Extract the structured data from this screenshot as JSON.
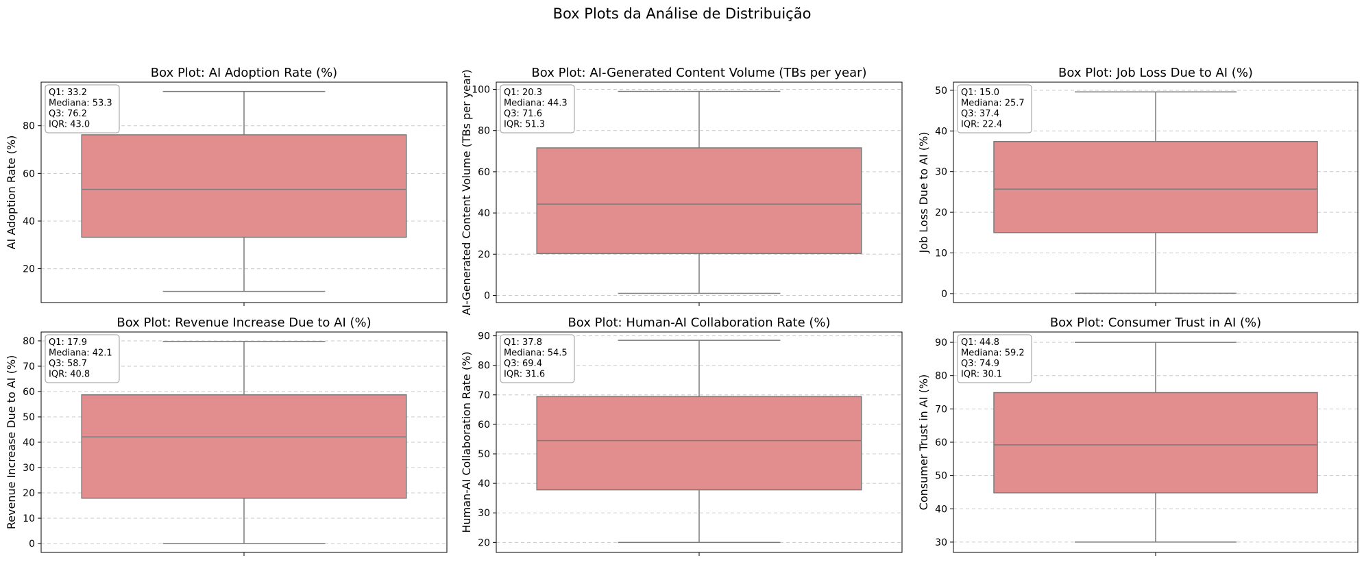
{
  "figure": {
    "title": "Box Plots da Análise de Distribuição"
  },
  "style": {
    "box_fill": "#e28d8e",
    "line_color": "#7a7a7a",
    "grid_color": "#c8c8c8",
    "grid": "y-dashed"
  },
  "chart_data": [
    {
      "type": "box",
      "title": "Box Plot: AI Adoption Rate (%)",
      "ylabel": "AI Adoption Rate (%)",
      "ylim": [
        5.8,
        98.3
      ],
      "yticks": [
        20,
        40,
        60,
        80
      ],
      "whisker_low": 10.5,
      "q1": 33.2,
      "median": 53.3,
      "q3": 76.2,
      "whisker_high": 94.4,
      "stats_lines": [
        "Q1: 33.2",
        "Mediana: 53.3",
        "Q3: 76.2",
        "IQR: 43.0"
      ]
    },
    {
      "type": "box",
      "title": "Box Plot: AI-Generated Content Volume (TBs per year)",
      "ylabel": "AI-Generated Content Volume (TBs per year)",
      "ylim": [
        -3.5,
        103.5
      ],
      "yticks": [
        0,
        20,
        40,
        60,
        80,
        100
      ],
      "whisker_low": 1.0,
      "q1": 20.3,
      "median": 44.3,
      "q3": 71.6,
      "whisker_high": 99.0,
      "stats_lines": [
        "Q1: 20.3",
        "Mediana: 44.3",
        "Q3: 71.6",
        "IQR: 51.3"
      ]
    },
    {
      "type": "box",
      "title": "Box Plot: Job Loss Due to AI (%)",
      "ylabel": "Job Loss Due to AI (%)",
      "ylim": [
        -2.2,
        52.0
      ],
      "yticks": [
        0,
        10,
        20,
        30,
        40,
        50
      ],
      "whisker_low": 0.1,
      "q1": 15.0,
      "median": 25.7,
      "q3": 37.4,
      "whisker_high": 49.6,
      "stats_lines": [
        "Q1: 15.0",
        "Mediana: 25.7",
        "Q3: 37.4",
        "IQR: 22.4"
      ]
    },
    {
      "type": "box",
      "title": "Box Plot: Revenue Increase Due to AI (%)",
      "ylabel": "Revenue Increase Due to AI (%)",
      "ylim": [
        -3.5,
        83.5
      ],
      "yticks": [
        0,
        10,
        20,
        30,
        40,
        50,
        60,
        70,
        80
      ],
      "whisker_low": 0.0,
      "q1": 17.9,
      "median": 42.1,
      "q3": 58.7,
      "whisker_high": 79.8,
      "stats_lines": [
        "Q1: 17.9",
        "Mediana: 42.1",
        "Q3: 58.7",
        "IQR: 40.8"
      ]
    },
    {
      "type": "box",
      "title": "Box Plot: Human-AI Collaboration Rate (%)",
      "ylabel": "Human-AI Collaboration Rate (%)",
      "ylim": [
        16.6,
        91.3
      ],
      "yticks": [
        20,
        30,
        40,
        50,
        60,
        70,
        80,
        90
      ],
      "whisker_low": 20.0,
      "q1": 37.8,
      "median": 54.5,
      "q3": 69.4,
      "whisker_high": 88.5,
      "stats_lines": [
        "Q1: 37.8",
        "Mediana: 54.5",
        "Q3: 69.4",
        "IQR: 31.6"
      ]
    },
    {
      "type": "box",
      "title": "Box Plot: Consumer Trust in AI (%)",
      "ylabel": "Consumer Trust in AI (%)",
      "ylim": [
        26.9,
        93.1
      ],
      "yticks": [
        30,
        40,
        50,
        60,
        70,
        80,
        90
      ],
      "whisker_low": 30.0,
      "q1": 44.8,
      "median": 59.2,
      "q3": 74.9,
      "whisker_high": 90.0,
      "stats_lines": [
        "Q1: 44.8",
        "Mediana: 59.2",
        "Q3: 74.9",
        "IQR: 30.1"
      ]
    }
  ]
}
